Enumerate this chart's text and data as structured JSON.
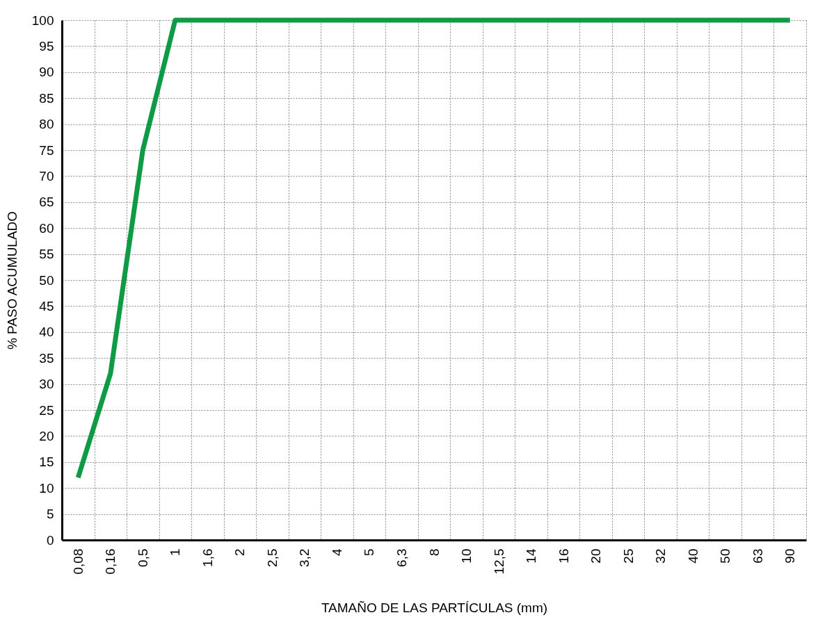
{
  "chart_data": {
    "type": "line",
    "xlabel": "TAMAÑO DE LAS PARTÍCULAS (mm)",
    "ylabel": "% PASO ACUMULADO",
    "categories": [
      "0,08",
      "0,16",
      "0,5",
      "1",
      "1,6",
      "2",
      "2,5",
      "3,2",
      "4",
      "5",
      "6,3",
      "8",
      "10",
      "12,5",
      "14",
      "16",
      "20",
      "25",
      "32",
      "40",
      "50",
      "63",
      "90"
    ],
    "series": [
      {
        "color": "#0f9b46",
        "values": [
          12,
          32,
          75,
          100,
          100,
          100,
          100,
          100,
          100,
          100,
          100,
          100,
          100,
          100,
          100,
          100,
          100,
          100,
          100,
          100,
          100,
          100,
          100
        ]
      }
    ],
    "ylim": [
      0,
      100
    ],
    "yticks": [
      0,
      5,
      10,
      15,
      20,
      25,
      30,
      35,
      40,
      45,
      50,
      55,
      60,
      65,
      70,
      75,
      80,
      85,
      90,
      95,
      100
    ],
    "grid": true,
    "line_style": "solid",
    "marker": "none",
    "legend": false
  }
}
